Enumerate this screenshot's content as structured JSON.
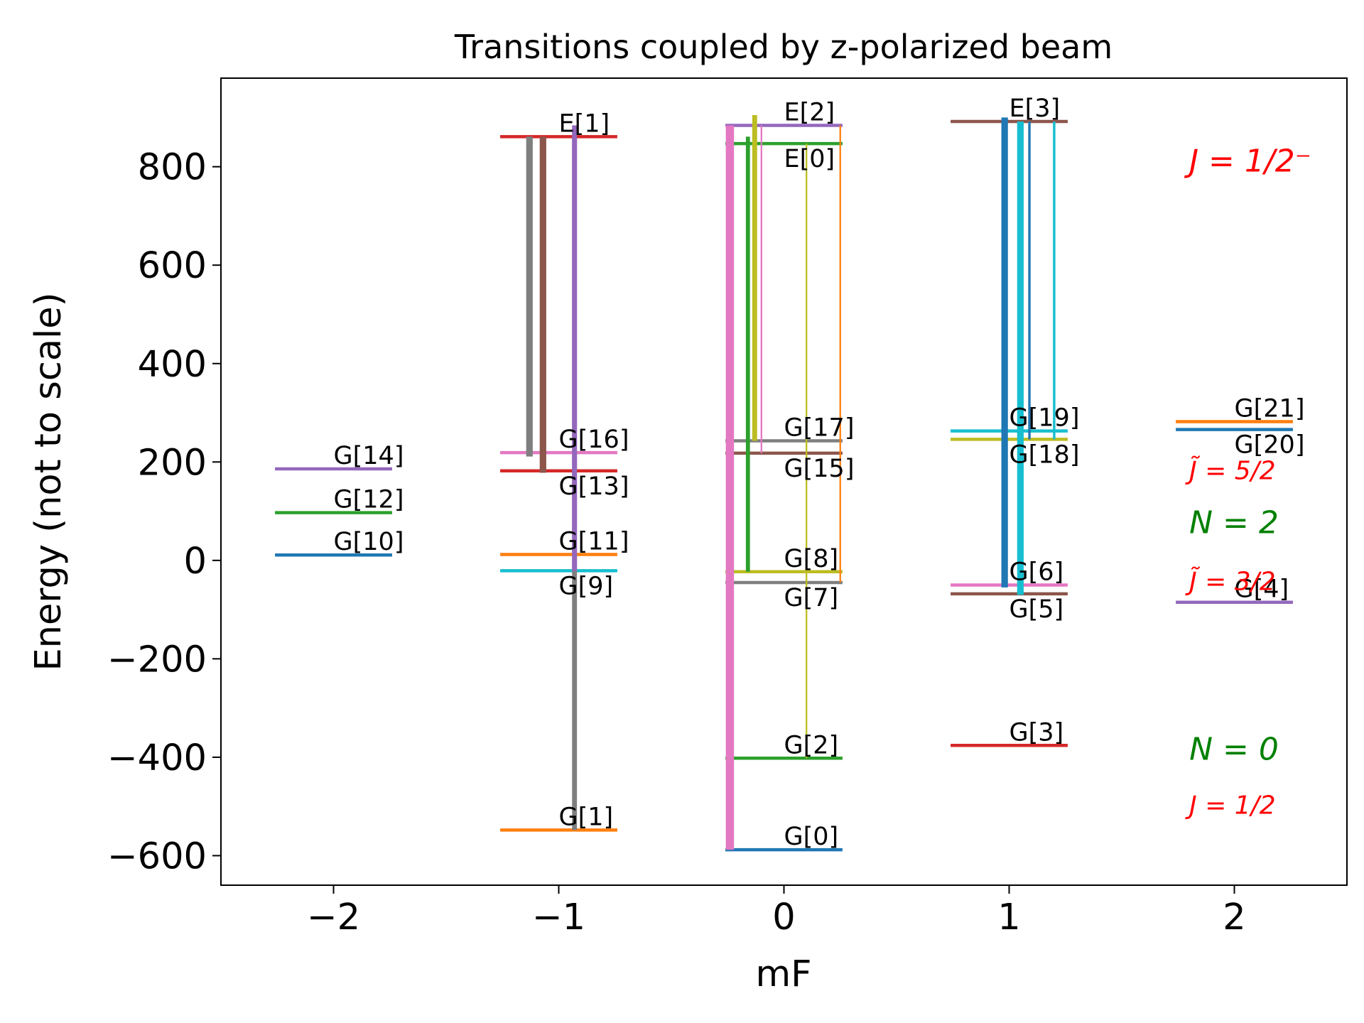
{
  "chart_data": {
    "type": "level-diagram",
    "title": "Transitions coupled by z-polarized beam",
    "xlabel": "mF",
    "ylabel": "Energy (not to scale)",
    "xlim": [
      -2.5,
      2.5
    ],
    "ylim": [
      -660,
      980
    ],
    "xticks": [
      -2,
      -1,
      0,
      1,
      2
    ],
    "xtick_labels": [
      "−2",
      "−1",
      "0",
      "1",
      "2"
    ],
    "yticks": [
      -600,
      -400,
      -200,
      0,
      200,
      400,
      600,
      800
    ],
    "ytick_labels": [
      "−600",
      "−400",
      "−200",
      "0",
      "200",
      "400",
      "600",
      "800"
    ],
    "grid": false,
    "legend": false,
    "levels": [
      {
        "label": "G[0]",
        "mF": 0,
        "energy": -588,
        "color": "#1f77b4",
        "label_pos": "above"
      },
      {
        "label": "G[1]",
        "mF": -1,
        "energy": -548,
        "color": "#ff7f0e",
        "label_pos": "above"
      },
      {
        "label": "G[2]",
        "mF": 0,
        "energy": -402,
        "color": "#2ca02c",
        "label_pos": "above"
      },
      {
        "label": "G[3]",
        "mF": 1,
        "energy": -376,
        "color": "#d62728",
        "label_pos": "above"
      },
      {
        "label": "G[4]",
        "mF": 2,
        "energy": -85,
        "color": "#9467bd",
        "label_pos": "above"
      },
      {
        "label": "G[5]",
        "mF": 1,
        "energy": -68,
        "color": "#8c564b",
        "label_pos": "below"
      },
      {
        "label": "G[6]",
        "mF": 1,
        "energy": -50,
        "color": "#e377c2",
        "label_pos": "above"
      },
      {
        "label": "G[7]",
        "mF": 0,
        "energy": -45,
        "color": "#7f7f7f",
        "label_pos": "below"
      },
      {
        "label": "G[8]",
        "mF": 0,
        "energy": -23,
        "color": "#bcbd22",
        "label_pos": "above"
      },
      {
        "label": "G[9]",
        "mF": -1,
        "energy": -21,
        "color": "#17becf",
        "label_pos": "below"
      },
      {
        "label": "G[10]",
        "mF": -2,
        "energy": 11,
        "color": "#1f77b4",
        "label_pos": "above"
      },
      {
        "label": "G[11]",
        "mF": -1,
        "energy": 12,
        "color": "#ff7f0e",
        "label_pos": "above"
      },
      {
        "label": "G[12]",
        "mF": -2,
        "energy": 97,
        "color": "#2ca02c",
        "label_pos": "above"
      },
      {
        "label": "G[13]",
        "mF": -1,
        "energy": 182,
        "color": "#d62728",
        "label_pos": "below"
      },
      {
        "label": "G[14]",
        "mF": -2,
        "energy": 186,
        "color": "#9467bd",
        "label_pos": "above"
      },
      {
        "label": "G[15]",
        "mF": 0,
        "energy": 218,
        "color": "#8c564b",
        "label_pos": "below"
      },
      {
        "label": "G[16]",
        "mF": -1,
        "energy": 219,
        "color": "#e377c2",
        "label_pos": "above"
      },
      {
        "label": "G[17]",
        "mF": 0,
        "energy": 243,
        "color": "#7f7f7f",
        "label_pos": "above"
      },
      {
        "label": "G[18]",
        "mF": 1,
        "energy": 246,
        "color": "#bcbd22",
        "label_pos": "below"
      },
      {
        "label": "G[19]",
        "mF": 1,
        "energy": 263,
        "color": "#17becf",
        "label_pos": "above"
      },
      {
        "label": "G[20]",
        "mF": 2,
        "energy": 266,
        "color": "#1f77b4",
        "label_pos": "below"
      },
      {
        "label": "G[21]",
        "mF": 2,
        "energy": 282,
        "color": "#ff7f0e",
        "label_pos": "above"
      },
      {
        "label": "E[0]",
        "mF": 0,
        "energy": 847,
        "color": "#2ca02c",
        "label_pos": "below"
      },
      {
        "label": "E[1]",
        "mF": -1,
        "energy": 861,
        "color": "#d62728",
        "label_pos": "above"
      },
      {
        "label": "E[2]",
        "mF": 0,
        "energy": 884,
        "color": "#9467bd",
        "label_pos": "above"
      },
      {
        "label": "E[3]",
        "mF": 1,
        "energy": 892,
        "color": "#8c564b",
        "label_pos": "above"
      }
    ],
    "transitions": [
      {
        "x": -1.13,
        "from": 211,
        "to": 861,
        "color": "#7f7f7f",
        "width": 4
      },
      {
        "x": -1.07,
        "from": 178,
        "to": 861,
        "color": "#8c564b",
        "width": 4
      },
      {
        "x": -0.93,
        "from": -548,
        "to": 861,
        "color": "#7f7f7f",
        "width": 3
      },
      {
        "x": -0.93,
        "from": -21,
        "to": 884,
        "color": "#9467bd",
        "width": 3
      },
      {
        "x": -0.24,
        "from": -588,
        "to": 884,
        "color": "#e377c2",
        "width": 5
      },
      {
        "x": -0.16,
        "from": -23,
        "to": 861,
        "color": "#2ca02c",
        "width": 2.5
      },
      {
        "x": -0.13,
        "from": 243,
        "to": 905,
        "color": "#bcbd22",
        "width": 3
      },
      {
        "x": -0.1,
        "from": 218,
        "to": 884,
        "color": "#e377c2",
        "width": 1
      },
      {
        "x": 0.1,
        "from": -402,
        "to": 847,
        "color": "#bcbd22",
        "width": 1
      },
      {
        "x": 0.25,
        "from": -45,
        "to": 884,
        "color": "#ff7f0e",
        "width": 1
      },
      {
        "x": 0.98,
        "from": -55,
        "to": 900,
        "color": "#1f77b4",
        "width": 4
      },
      {
        "x": 1.05,
        "from": -70,
        "to": 892,
        "color": "#17becf",
        "width": 4
      },
      {
        "x": 1.09,
        "from": 246,
        "to": 892,
        "color": "#1f77b4",
        "width": 1.5
      },
      {
        "x": 1.2,
        "from": 246,
        "to": 892,
        "color": "#17becf",
        "width": 1.5
      }
    ],
    "annotations": [
      {
        "text": "J = 1/2⁻",
        "x": 1.8,
        "y": 790,
        "color": "#ff0000",
        "size": 44
      },
      {
        "text": "J̃ = 5/2",
        "x": 1.8,
        "y": 165,
        "color": "#ff0000",
        "size": 36
      },
      {
        "text": "N = 2",
        "x": 1.8,
        "y": 55,
        "color": "#008000",
        "size": 44
      },
      {
        "text": "J̃ = 3/2",
        "x": 1.8,
        "y": -60,
        "color": "#ff0000",
        "size": 36
      },
      {
        "text": "N = 0",
        "x": 1.8,
        "y": -405,
        "color": "#008000",
        "size": 44
      },
      {
        "text": "J = 1/2",
        "x": 1.8,
        "y": -515,
        "color": "#ff0000",
        "size": 36
      }
    ]
  }
}
